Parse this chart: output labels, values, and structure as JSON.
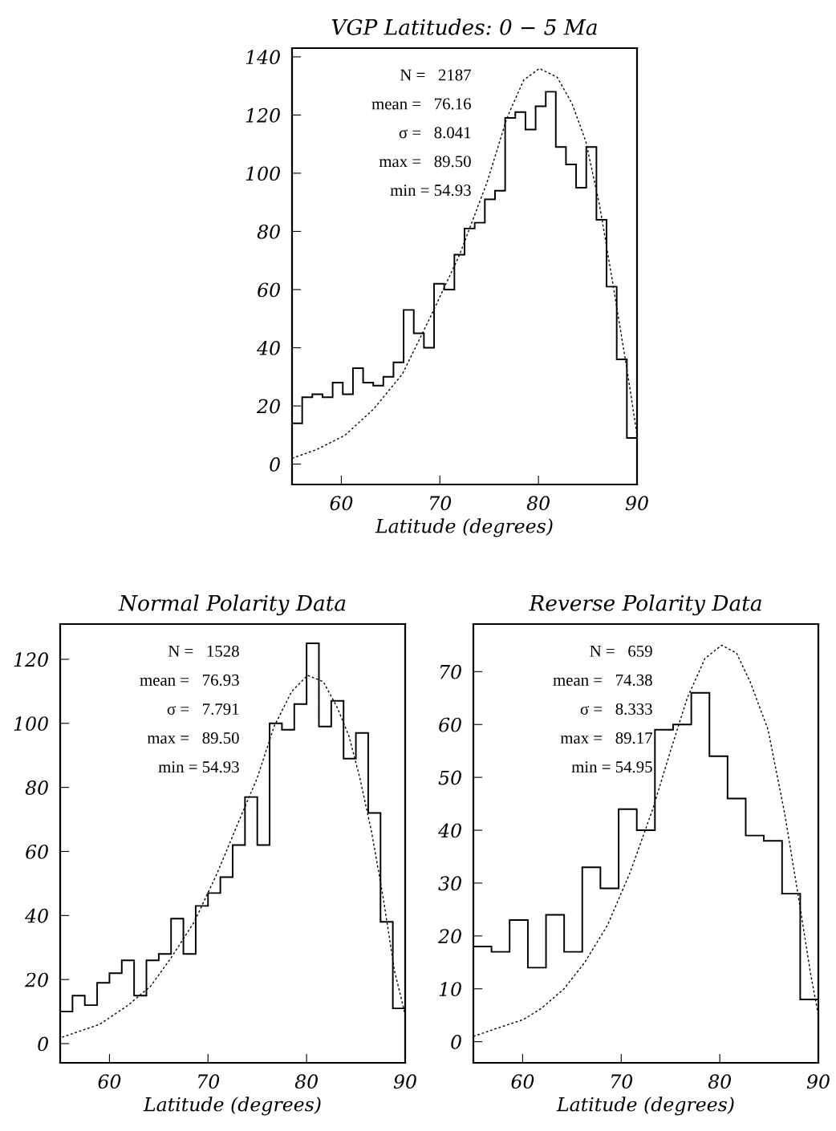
{
  "chart_data": [
    {
      "type": "histogram",
      "title": "VGP Latitudes: 0 − 5 Ma",
      "xlabel": "Latitude (degrees)",
      "color": "#000000",
      "bins": [
        55,
        56.03,
        57.06,
        58.09,
        59.12,
        60.15,
        61.18,
        62.21,
        63.24,
        64.26,
        65.29,
        66.32,
        67.35,
        68.38,
        69.41,
        70.44,
        71.47,
        72.5,
        73.53,
        74.56,
        75.59,
        76.62,
        77.65,
        78.68,
        79.71,
        80.74,
        81.76,
        82.79,
        83.82,
        84.85,
        85.88,
        86.91,
        87.94,
        88.97,
        90
      ],
      "values": [
        14,
        23,
        24,
        23,
        28,
        24,
        33,
        28,
        27,
        30,
        35,
        53,
        45,
        40,
        62,
        60,
        72,
        81,
        83,
        91,
        94,
        119,
        121,
        115,
        123,
        128,
        109,
        103,
        95,
        109,
        84,
        61,
        36,
        9
      ],
      "series": [
        {
          "type": "line",
          "line_style": "dotted",
          "color": "#000000",
          "x": [
            55,
            57.5,
            60.4,
            63.3,
            66.2,
            69.1,
            72,
            74.8,
            76.8,
            78.5,
            80.1,
            81.9,
            83.4,
            84.8,
            86.2,
            87.6,
            89.1,
            90
          ],
          "values": [
            2,
            5,
            10,
            19,
            31,
            51,
            72,
            97,
            119,
            132,
            136,
            133,
            124,
            111,
            89,
            61,
            30,
            10
          ]
        }
      ],
      "xlim": [
        55,
        90
      ],
      "xticks": [
        60,
        70,
        80,
        90
      ],
      "ylim": [
        -7,
        143
      ],
      "yticks": [
        0,
        20,
        40,
        60,
        80,
        100,
        120,
        140
      ],
      "annotations": [
        "N =   2187",
        "mean =   76.16",
        "σ =   8.041",
        "max =   89.50",
        "min = 54.93"
      ]
    },
    {
      "type": "histogram",
      "title": "Normal Polarity Data",
      "xlabel": "Latitude (degrees)",
      "color": "#000000",
      "bins": [
        55,
        56.25,
        57.5,
        58.75,
        60,
        61.25,
        62.5,
        63.75,
        65,
        66.25,
        67.5,
        68.75,
        70,
        71.25,
        72.5,
        73.75,
        75,
        76.25,
        77.5,
        78.75,
        80,
        81.25,
        82.5,
        83.75,
        85,
        86.25,
        87.5,
        88.75,
        90
      ],
      "values": [
        10,
        15,
        12,
        19,
        22,
        26,
        15,
        26,
        28,
        39,
        28,
        43,
        47,
        52,
        62,
        77,
        62,
        100,
        98,
        106,
        125,
        99,
        107,
        89,
        97,
        72,
        38,
        11
      ],
      "series": [
        {
          "type": "line",
          "line_style": "dotted",
          "color": "#000000",
          "x": [
            55.2,
            59,
            61.9,
            64.2,
            66.3,
            68.6,
            70.9,
            73.2,
            75,
            76.7,
            78.5,
            80.1,
            81.7,
            83.1,
            84.3,
            85.4,
            86.6,
            87.8,
            88.9,
            90
          ],
          "values": [
            2,
            6,
            12,
            18,
            27,
            38,
            53,
            70,
            83,
            99,
            110,
            115,
            113,
            105,
            96,
            83,
            66,
            45,
            23,
            9
          ]
        }
      ],
      "xlim": [
        55,
        90
      ],
      "xticks": [
        60,
        70,
        80,
        90
      ],
      "ylim": [
        -6,
        131
      ],
      "yticks": [
        0,
        20,
        40,
        60,
        80,
        100,
        120
      ],
      "annotations": [
        "N =   1528",
        "mean =   76.93",
        "σ =   7.791",
        "max =   89.50",
        "min = 54.93"
      ]
    },
    {
      "type": "histogram",
      "title": "Reverse Polarity Data",
      "xlabel": "Latitude (degrees)",
      "color": "#000000",
      "bins": [
        55,
        56.84,
        58.68,
        60.53,
        62.37,
        64.21,
        66.05,
        67.89,
        69.74,
        71.58,
        73.42,
        75.26,
        77.11,
        78.95,
        80.79,
        82.63,
        84.47,
        86.32,
        88.16,
        90
      ],
      "values": [
        18,
        17,
        23,
        14,
        24,
        17,
        33,
        29,
        44,
        40,
        59,
        60,
        66,
        54,
        46,
        39,
        38,
        28,
        8
      ],
      "series": [
        {
          "type": "line",
          "line_style": "dotted",
          "color": "#000000",
          "x": [
            55,
            57.5,
            60.1,
            61.9,
            64.2,
            66.3,
            68.6,
            70.9,
            73.2,
            75,
            76.7,
            78.5,
            80.2,
            81.7,
            83.1,
            84.9,
            86.6,
            88.1,
            89.2,
            90
          ],
          "values": [
            1,
            2.6,
            4.2,
            6.3,
            10,
            15,
            22,
            32,
            44,
            55,
            65,
            72.5,
            75,
            73.5,
            68,
            59,
            43,
            26,
            13,
            5
          ]
        }
      ],
      "xlim": [
        55,
        90
      ],
      "xticks": [
        60,
        70,
        80,
        90
      ],
      "ylim": [
        -4,
        79
      ],
      "yticks": [
        0,
        10,
        20,
        30,
        40,
        50,
        60,
        70
      ],
      "annotations": [
        "N =   659",
        "mean =   74.38",
        "σ =   8.333",
        "max =   89.17",
        "min = 54.95"
      ]
    }
  ]
}
